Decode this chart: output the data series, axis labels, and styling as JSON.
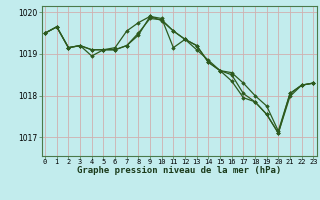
{
  "title": "Graphe pression niveau de la mer (hPa)",
  "background_color": "#c2eced",
  "grid_color": "#d0b0b0",
  "line_color": "#2d5a1e",
  "x_labels": [
    "0",
    "1",
    "2",
    "3",
    "4",
    "5",
    "6",
    "7",
    "8",
    "9",
    "10",
    "11",
    "12",
    "13",
    "14",
    "15",
    "16",
    "17",
    "18",
    "19",
    "20",
    "21",
    "22",
    "23"
  ],
  "ylim": [
    1016.55,
    1020.15
  ],
  "yticks": [
    1017,
    1018,
    1019,
    1020
  ],
  "series": [
    [
      1019.5,
      1019.65,
      1019.15,
      1019.2,
      1019.1,
      1019.1,
      1019.15,
      1019.55,
      1019.75,
      1019.9,
      1019.85,
      1019.15,
      1019.35,
      1019.1,
      1018.85,
      1018.6,
      1018.55,
      1018.3,
      1018.0,
      1017.75,
      1017.15,
      1018.05,
      1018.25,
      1018.3
    ],
    [
      1019.5,
      1019.65,
      1019.15,
      1019.2,
      1018.95,
      1019.1,
      1019.1,
      1019.2,
      1019.5,
      1019.85,
      1019.82,
      1019.55,
      1019.35,
      1019.2,
      1018.8,
      1018.6,
      1018.35,
      1017.95,
      1017.85,
      1017.55,
      1017.1,
      1017.98,
      1018.25,
      1018.3
    ],
    [
      1019.5,
      1019.65,
      1019.15,
      1019.2,
      1019.1,
      1019.1,
      1019.1,
      1019.2,
      1019.45,
      1019.9,
      1019.8,
      1019.55,
      1019.35,
      1019.2,
      1018.8,
      1018.6,
      1018.5,
      1018.05,
      1017.85,
      1017.55,
      1017.1,
      1018.05,
      1018.25,
      1018.3
    ]
  ]
}
